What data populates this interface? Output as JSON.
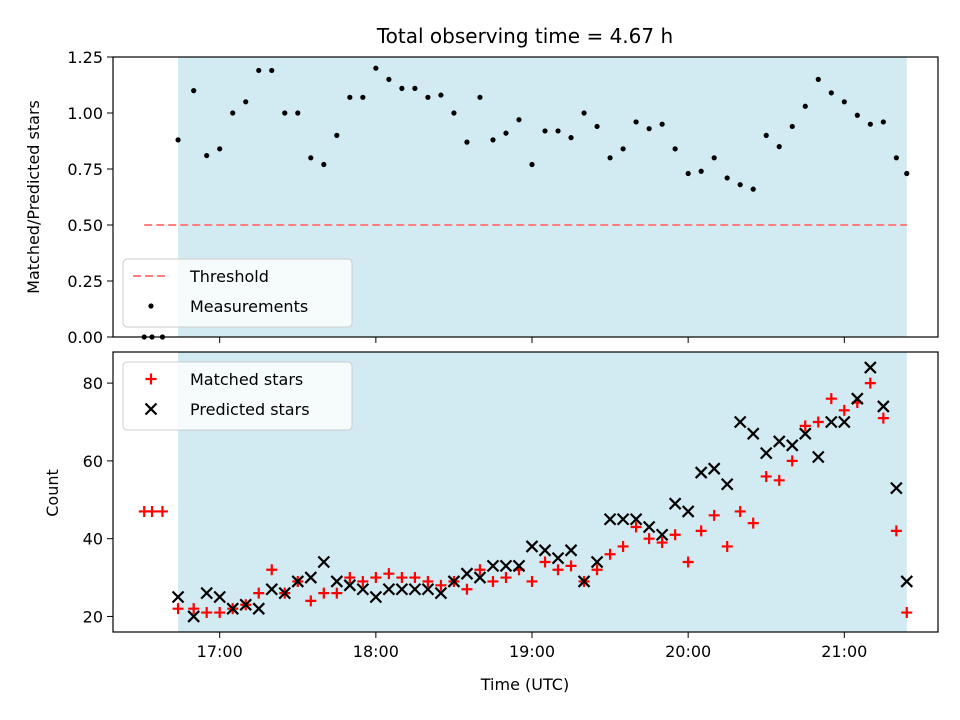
{
  "chart_data": [
    {
      "type": "scatter",
      "title": "Total observing time = 4.67 h",
      "xlabel": "",
      "ylabel": "Matched/Predicted stars",
      "xlim": [
        "16:19",
        "21:36"
      ],
      "ylim": [
        0,
        1.25
      ],
      "x_ticks": [
        "17:00",
        "18:00",
        "19:00",
        "20:00",
        "21:00"
      ],
      "x_ticks_labeled": false,
      "y_ticks": [
        "0.00",
        "0.25",
        "0.50",
        "0.75",
        "1.00",
        "1.25"
      ],
      "shaded_window": {
        "start": "16:44",
        "end": "21:24",
        "color": "#add8e6"
      },
      "legend": {
        "placement": "lower-left",
        "entries": [
          "Threshold",
          "Measurements"
        ]
      },
      "series": [
        {
          "name": "Threshold",
          "style": "dashed-line",
          "color": "#ff7f7f",
          "x": [
            "16:31",
            "21:24"
          ],
          "y": [
            0.5,
            0.5
          ]
        },
        {
          "name": "Measurements",
          "style": "dot",
          "color": "#000000",
          "x": [
            "16:31",
            "16:34",
            "16:38",
            "16:44",
            "16:50",
            "16:55",
            "17:00",
            "17:05",
            "17:10",
            "17:15",
            "17:20",
            "17:25",
            "17:30",
            "17:35",
            "17:40",
            "17:45",
            "17:50",
            "17:55",
            "18:00",
            "18:05",
            "18:10",
            "18:15",
            "18:20",
            "18:25",
            "18:30",
            "18:35",
            "18:40",
            "18:45",
            "18:50",
            "18:55",
            "19:00",
            "19:05",
            "19:10",
            "19:15",
            "19:20",
            "19:25",
            "19:30",
            "19:35",
            "19:40",
            "19:45",
            "19:50",
            "19:55",
            "20:00",
            "20:05",
            "20:10",
            "20:15",
            "20:20",
            "20:25",
            "20:30",
            "20:35",
            "20:40",
            "20:45",
            "20:50",
            "20:55",
            "21:00",
            "21:05",
            "21:10",
            "21:15",
            "21:20",
            "21:24"
          ],
          "y": [
            0.0,
            0.0,
            0.0,
            0.88,
            1.1,
            0.81,
            0.84,
            1.0,
            1.05,
            1.19,
            1.19,
            1.0,
            1.0,
            0.8,
            0.77,
            0.9,
            1.07,
            1.07,
            1.2,
            1.15,
            1.11,
            1.11,
            1.07,
            1.08,
            1.0,
            0.87,
            1.07,
            0.88,
            0.91,
            0.97,
            0.77,
            0.92,
            0.92,
            0.89,
            1.0,
            0.94,
            0.8,
            0.84,
            0.96,
            0.93,
            0.95,
            0.84,
            0.73,
            0.74,
            0.8,
            0.71,
            0.68,
            0.66,
            0.9,
            0.85,
            0.94,
            1.03,
            1.15,
            1.09,
            1.05,
            0.99,
            0.95,
            0.96,
            0.8,
            0.73
          ]
        }
      ]
    },
    {
      "type": "scatter",
      "title": "",
      "xlabel": "Time (UTC)",
      "ylabel": "Count",
      "xlim": [
        "16:19",
        "21:36"
      ],
      "ylim": [
        16,
        88
      ],
      "x_ticks": [
        "17:00",
        "18:00",
        "19:00",
        "20:00",
        "21:00"
      ],
      "y_ticks": [
        "20",
        "40",
        "60",
        "80"
      ],
      "shaded_window": {
        "start": "16:44",
        "end": "21:24",
        "color": "#add8e6"
      },
      "legend": {
        "placement": "upper-left",
        "entries": [
          "Matched stars",
          "Predicted stars"
        ]
      },
      "series": [
        {
          "name": "Matched stars",
          "marker": "plus",
          "color": "#ff0000",
          "x": [
            "16:31",
            "16:34",
            "16:38",
            "16:44",
            "16:50",
            "16:55",
            "17:00",
            "17:05",
            "17:10",
            "17:15",
            "17:20",
            "17:25",
            "17:30",
            "17:35",
            "17:40",
            "17:45",
            "17:50",
            "17:55",
            "18:00",
            "18:05",
            "18:10",
            "18:15",
            "18:20",
            "18:25",
            "18:30",
            "18:35",
            "18:40",
            "18:45",
            "18:50",
            "18:55",
            "19:00",
            "19:05",
            "19:10",
            "19:15",
            "19:20",
            "19:25",
            "19:30",
            "19:35",
            "19:40",
            "19:45",
            "19:50",
            "19:55",
            "20:00",
            "20:05",
            "20:10",
            "20:15",
            "20:20",
            "20:25",
            "20:30",
            "20:35",
            "20:40",
            "20:45",
            "20:50",
            "20:55",
            "21:00",
            "21:05",
            "21:10",
            "21:15",
            "21:20",
            "21:24"
          ],
          "y": [
            47,
            47,
            47,
            22,
            22,
            21,
            21,
            22,
            23,
            26,
            32,
            26,
            29,
            24,
            26,
            26,
            30,
            29,
            30,
            31,
            30,
            30,
            29,
            28,
            29,
            27,
            32,
            29,
            30,
            32,
            29,
            34,
            32,
            33,
            29,
            32,
            36,
            38,
            43,
            40,
            39,
            41,
            34,
            42,
            46,
            38,
            47,
            44,
            56,
            55,
            60,
            69,
            70,
            76,
            73,
            75,
            80,
            71,
            42,
            21
          ]
        },
        {
          "name": "Predicted stars",
          "marker": "x",
          "color": "#000000",
          "x": [
            "16:44",
            "16:50",
            "16:55",
            "17:00",
            "17:05",
            "17:10",
            "17:15",
            "17:20",
            "17:25",
            "17:30",
            "17:35",
            "17:40",
            "17:45",
            "17:50",
            "17:55",
            "18:00",
            "18:05",
            "18:10",
            "18:15",
            "18:20",
            "18:25",
            "18:30",
            "18:35",
            "18:40",
            "18:45",
            "18:50",
            "18:55",
            "19:00",
            "19:05",
            "19:10",
            "19:15",
            "19:20",
            "19:25",
            "19:30",
            "19:35",
            "19:40",
            "19:45",
            "19:50",
            "19:55",
            "20:00",
            "20:05",
            "20:10",
            "20:15",
            "20:20",
            "20:25",
            "20:30",
            "20:35",
            "20:40",
            "20:45",
            "20:50",
            "20:55",
            "21:00",
            "21:05",
            "21:10",
            "21:15",
            "21:20",
            "21:24"
          ],
          "y": [
            25,
            20,
            26,
            25,
            22,
            23,
            22,
            27,
            26,
            29,
            30,
            34,
            29,
            28,
            27,
            25,
            27,
            27,
            27,
            27,
            26,
            29,
            31,
            30,
            33,
            33,
            33,
            38,
            37,
            35,
            37,
            29,
            34,
            45,
            45,
            45,
            43,
            41,
            49,
            47,
            57,
            58,
            54,
            70,
            67,
            62,
            65,
            64,
            67,
            61,
            70,
            70,
            76,
            84,
            74,
            53,
            29
          ]
        }
      ]
    }
  ]
}
